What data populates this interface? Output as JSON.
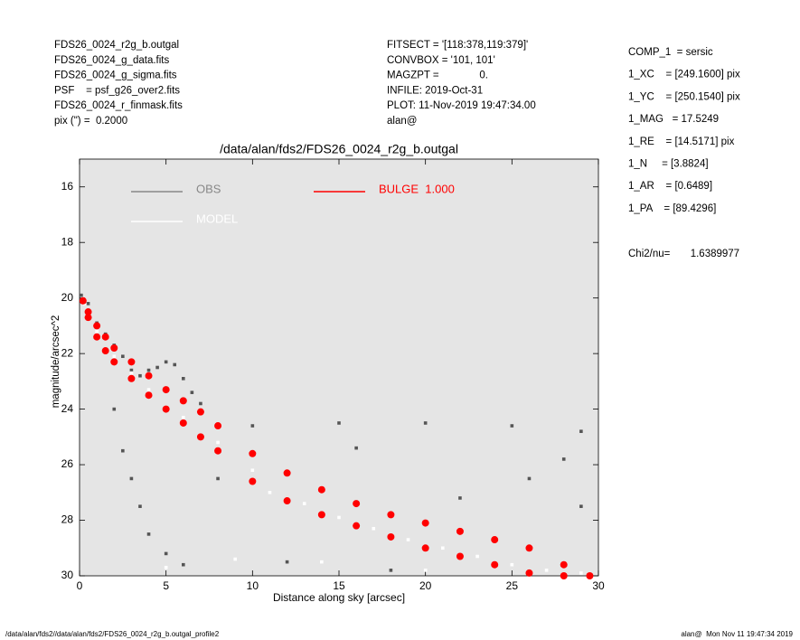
{
  "header": {
    "left": [
      "FDS26_0024_r2g_b.outgal",
      "FDS26_0024_g_data.fits",
      "FDS26_0024_g_sigma.fits",
      "PSF    = psf_g26_over2.fits",
      "FDS26_0024_r_finmask.fits",
      "pix (\") =  0.2000"
    ],
    "middle": [
      "FITSECT = '[118:378,119:379]'",
      "CONVBOX = '101, 101'",
      "MAGZPT =              0.",
      "INFILE: 2019-Oct-31",
      "PLOT: 11-Nov-2019 19:47:34.00",
      "alan@"
    ],
    "right": [
      "COMP_1  = sersic",
      "1_XC    = [249.1600] pix",
      "1_YC    = [250.1540] pix",
      "1_MAG   = 17.5249",
      "1_RE    = [14.5171] pix",
      "1_N     = [3.8824]",
      "1_AR    = [0.6489]",
      "1_PA    = [89.4296]"
    ],
    "chi2": "Chi2/nu=       1.6389977"
  },
  "footer": {
    "left": "/data/alan/fds2//data/alan/fds2/FDS26_0024_r2g_b.outgal_profile2",
    "right": "alan@  Mon Nov 11 19:47:34 2019"
  },
  "chart_data": {
    "type": "scatter",
    "title": "/data/alan/fds2/FDS26_0024_r2g_b.outgal",
    "xlabel": "Distance along sky [arcsec]",
    "ylabel": "magnitude/arcsec^2",
    "xlim": [
      0,
      30
    ],
    "ylim": [
      30,
      15
    ],
    "xticks": [
      0,
      5,
      10,
      15,
      20,
      25,
      30
    ],
    "yticks": [
      16,
      18,
      20,
      22,
      24,
      26,
      28,
      30
    ],
    "series": [
      {
        "name": "OBS",
        "color": "#555555",
        "x": [
          0.1,
          0.5,
          1,
          1.5,
          2,
          2.5,
          3,
          3.5,
          4,
          4.5,
          5,
          5.5,
          6,
          6.5,
          7,
          2,
          2.5,
          3,
          3.5,
          4,
          5,
          6,
          8,
          10,
          15,
          20,
          25,
          29,
          12,
          18,
          28,
          29,
          26,
          22,
          16
        ],
        "y": [
          19.9,
          20.2,
          20.9,
          21.3,
          21.7,
          22.1,
          22.6,
          22.8,
          22.6,
          22.5,
          22.3,
          22.4,
          22.9,
          23.4,
          23.8,
          24,
          25.5,
          26.5,
          27.5,
          28.5,
          29.2,
          29.6,
          26.5,
          24.6,
          24.5,
          24.5,
          24.6,
          24.8,
          29.5,
          29.8,
          25.8,
          27.5,
          26.5,
          27.2,
          25.4
        ]
      },
      {
        "name": "MODEL",
        "color": "#ffffff",
        "x": [
          0.3,
          1,
          2,
          3,
          4,
          6,
          8,
          10,
          11,
          13,
          15,
          17,
          19,
          21,
          23,
          25,
          27,
          29,
          5,
          9,
          14,
          20
        ],
        "y": [
          20.2,
          21.2,
          22.1,
          22.7,
          23.3,
          24.3,
          25.2,
          26.2,
          27.0,
          27.4,
          27.9,
          28.3,
          28.7,
          29.0,
          29.3,
          29.6,
          29.8,
          29.9,
          29.7,
          29.4,
          29.5,
          29.8
        ]
      },
      {
        "name": "BULGE  1.000",
        "color": "#ff0000",
        "x": [
          0.2,
          0.5,
          1,
          1.5,
          2,
          3,
          4,
          5,
          6,
          7,
          8,
          10,
          12,
          14,
          16,
          18,
          20,
          22,
          24,
          26,
          28,
          29.5,
          0.5,
          1,
          1.5,
          2,
          3,
          4,
          5,
          6,
          7,
          8,
          10,
          12,
          14,
          16,
          18,
          20,
          22,
          24,
          26,
          28
        ],
        "y": [
          20.1,
          20.5,
          21.0,
          21.4,
          21.8,
          22.3,
          22.8,
          23.3,
          23.7,
          24.1,
          24.6,
          25.6,
          26.3,
          26.9,
          27.4,
          27.8,
          28.1,
          28.4,
          28.7,
          29.0,
          29.6,
          30.0,
          20.7,
          21.4,
          21.9,
          22.3,
          22.9,
          23.5,
          24.0,
          24.5,
          25.0,
          25.5,
          26.6,
          27.3,
          27.8,
          28.2,
          28.6,
          29.0,
          29.3,
          29.6,
          29.9,
          30.0
        ]
      }
    ]
  }
}
